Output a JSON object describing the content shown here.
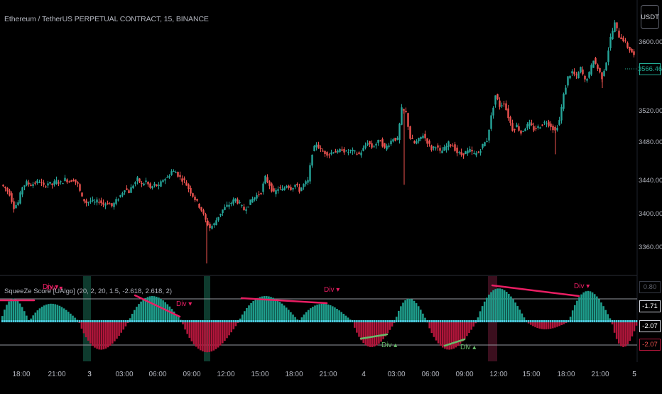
{
  "chart_title": "Ethereum / TetherUS PERPETUAL CONTRACT, 15, BINANCE",
  "currency_button": "USDT",
  "indicator_title": "SqueeZe Score [UAlgo] (20, 2, 20, 1.5, -2.618, 2.618, 2)",
  "price_axis_labels": [
    "3600.00",
    "3520.00",
    "3480.00",
    "3440.00",
    "3400.00",
    "3360.00"
  ],
  "current_price": "3566.46",
  "indicator_axis_labels": [
    "0.80",
    "-1.71",
    "-2.07",
    "-2.07"
  ],
  "time_axis_labels": [
    "18:00",
    "21:00",
    "3",
    "03:00",
    "06:00",
    "09:00",
    "12:00",
    "15:00",
    "18:00",
    "21:00",
    "4",
    "03:00",
    "06:00",
    "09:00",
    "12:00",
    "15:00",
    "18:00",
    "21:00",
    "5"
  ],
  "divergence_labels": [
    "Div",
    "Div",
    "Div",
    "Div",
    "Div",
    "Div",
    "Div"
  ],
  "colors": {
    "up": "#26a69a",
    "down": "#ef5350",
    "hist_up": "#1e9d8b",
    "hist_down": "#b2163b",
    "zero_dots": "#4dd0e1",
    "bull_div": "#66bb6a",
    "bear_div": "#e91e63",
    "background": "#000000"
  },
  "chart_data": {
    "type": "candlestick",
    "symbol": "ETHUSDT.P",
    "interval": "15",
    "ylim": [
      3345,
      3640
    ],
    "close_path": [
      [
        0,
        3440
      ],
      [
        6,
        3436
      ],
      [
        12,
        3430
      ],
      [
        18,
        3415
      ],
      [
        24,
        3420
      ],
      [
        30,
        3438
      ],
      [
        36,
        3442
      ],
      [
        42,
        3440
      ],
      [
        48,
        3442
      ],
      [
        54,
        3444
      ],
      [
        60,
        3438
      ],
      [
        66,
        3442
      ],
      [
        72,
        3440
      ],
      [
        78,
        3444
      ],
      [
        84,
        3442
      ],
      [
        90,
        3446
      ],
      [
        96,
        3444
      ],
      [
        102,
        3446
      ],
      [
        108,
        3440
      ],
      [
        114,
        3425
      ],
      [
        120,
        3420
      ],
      [
        126,
        3422
      ],
      [
        132,
        3420
      ],
      [
        138,
        3422
      ],
      [
        144,
        3418
      ],
      [
        150,
        3420
      ],
      [
        156,
        3416
      ],
      [
        162,
        3422
      ],
      [
        168,
        3428
      ],
      [
        174,
        3436
      ],
      [
        180,
        3432
      ],
      [
        186,
        3440
      ],
      [
        192,
        3446
      ],
      [
        198,
        3440
      ],
      [
        204,
        3444
      ],
      [
        210,
        3436
      ],
      [
        216,
        3440
      ],
      [
        222,
        3438
      ],
      [
        228,
        3446
      ],
      [
        234,
        3448
      ],
      [
        240,
        3455
      ],
      [
        246,
        3454
      ],
      [
        252,
        3448
      ],
      [
        258,
        3444
      ],
      [
        264,
        3436
      ],
      [
        270,
        3428
      ],
      [
        276,
        3420
      ],
      [
        282,
        3412
      ],
      [
        288,
        3400
      ],
      [
        294,
        3392
      ],
      [
        300,
        3396
      ],
      [
        306,
        3405
      ],
      [
        312,
        3412
      ],
      [
        318,
        3416
      ],
      [
        324,
        3420
      ],
      [
        330,
        3424
      ],
      [
        336,
        3418
      ],
      [
        342,
        3412
      ],
      [
        348,
        3418
      ],
      [
        354,
        3424
      ],
      [
        360,
        3428
      ],
      [
        366,
        3432
      ],
      [
        372,
        3448
      ],
      [
        378,
        3440
      ],
      [
        384,
        3430
      ],
      [
        390,
        3436
      ],
      [
        396,
        3434
      ],
      [
        402,
        3440
      ],
      [
        408,
        3436
      ],
      [
        414,
        3440
      ],
      [
        420,
        3434
      ],
      [
        426,
        3440
      ],
      [
        432,
        3444
      ],
      [
        438,
        3476
      ],
      [
        444,
        3486
      ],
      [
        450,
        3478
      ],
      [
        456,
        3476
      ],
      [
        462,
        3474
      ],
      [
        468,
        3478
      ],
      [
        474,
        3476
      ],
      [
        480,
        3480
      ],
      [
        486,
        3476
      ],
      [
        492,
        3478
      ],
      [
        498,
        3476
      ],
      [
        504,
        3474
      ],
      [
        510,
        3480
      ],
      [
        516,
        3488
      ],
      [
        522,
        3482
      ],
      [
        528,
        3486
      ],
      [
        534,
        3490
      ],
      [
        540,
        3480
      ],
      [
        546,
        3486
      ],
      [
        552,
        3492
      ],
      [
        558,
        3490
      ],
      [
        564,
        3524
      ],
      [
        570,
        3520
      ],
      [
        576,
        3492
      ],
      [
        582,
        3486
      ],
      [
        588,
        3490
      ],
      [
        594,
        3496
      ],
      [
        600,
        3488
      ],
      [
        606,
        3480
      ],
      [
        612,
        3484
      ],
      [
        618,
        3476
      ],
      [
        624,
        3480
      ],
      [
        630,
        3486
      ],
      [
        636,
        3484
      ],
      [
        642,
        3476
      ],
      [
        648,
        3474
      ],
      [
        654,
        3476
      ],
      [
        660,
        3478
      ],
      [
        666,
        3474
      ],
      [
        672,
        3476
      ],
      [
        678,
        3484
      ],
      [
        684,
        3490
      ],
      [
        690,
        3516
      ],
      [
        696,
        3540
      ],
      [
        702,
        3528
      ],
      [
        708,
        3532
      ],
      [
        714,
        3516
      ],
      [
        720,
        3502
      ],
      [
        726,
        3506
      ],
      [
        732,
        3498
      ],
      [
        738,
        3504
      ],
      [
        744,
        3508
      ],
      [
        750,
        3502
      ],
      [
        756,
        3504
      ],
      [
        762,
        3508
      ],
      [
        768,
        3510
      ],
      [
        774,
        3506
      ],
      [
        780,
        3500
      ],
      [
        786,
        3512
      ],
      [
        792,
        3540
      ],
      [
        798,
        3560
      ],
      [
        804,
        3566
      ],
      [
        810,
        3560
      ],
      [
        816,
        3570
      ],
      [
        822,
        3556
      ],
      [
        828,
        3564
      ],
      [
        834,
        3580
      ],
      [
        840,
        3570
      ],
      [
        846,
        3560
      ],
      [
        852,
        3578
      ],
      [
        858,
        3604
      ],
      [
        864,
        3620
      ],
      [
        870,
        3606
      ],
      [
        876,
        3602
      ],
      [
        882,
        3594
      ],
      [
        888,
        3588
      ],
      [
        894,
        3580
      ]
    ],
    "indicator": {
      "zero_line": 0,
      "upper_level": 1.71,
      "lower_level": -2.07,
      "top_label": 0.8
    }
  }
}
